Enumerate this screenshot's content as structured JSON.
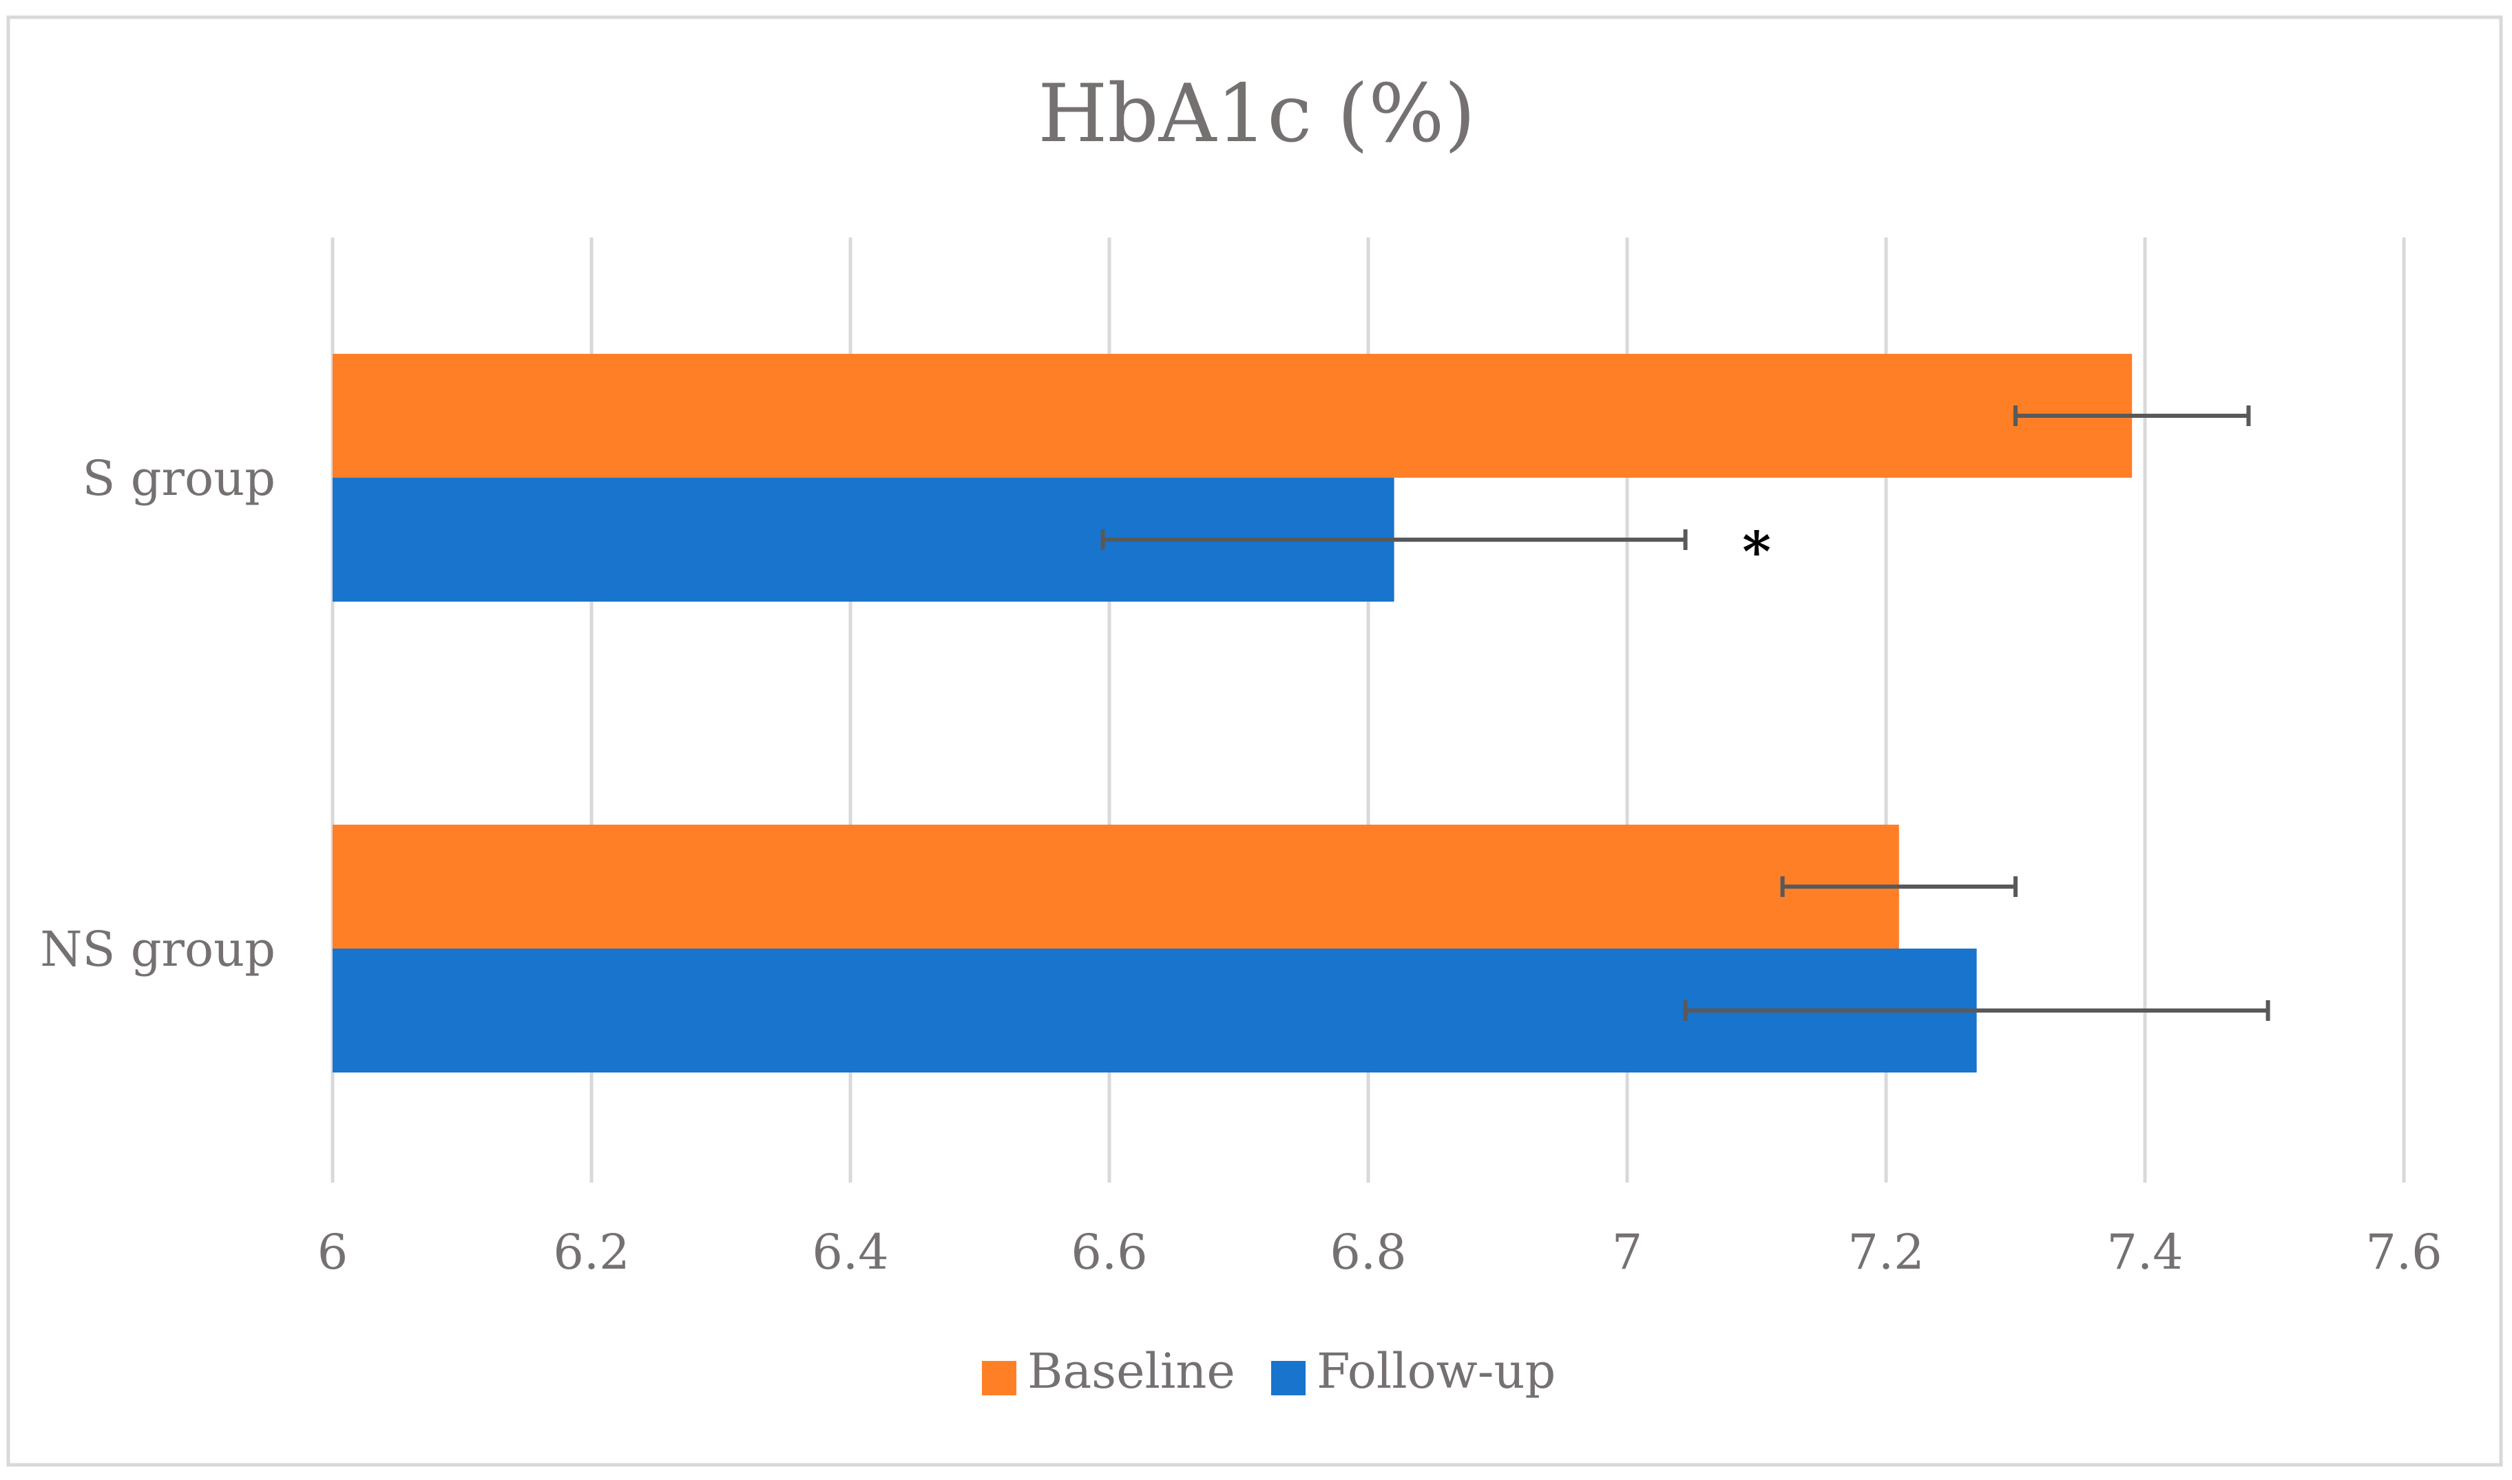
{
  "chart_data": {
    "type": "bar",
    "orientation": "horizontal",
    "title": "HbA1c (%)",
    "categories": [
      "S group",
      "NS group"
    ],
    "series": [
      {
        "name": "Baseline",
        "color": "#FF7F27",
        "values": [
          7.39,
          7.21
        ],
        "error_low": [
          7.3,
          7.12
        ],
        "error_high": [
          7.48,
          7.3
        ]
      },
      {
        "name": "Follow-up",
        "color": "#1874CD",
        "values": [
          6.82,
          7.27
        ],
        "error_low": [
          6.595,
          7.045
        ],
        "error_high": [
          7.045,
          7.495
        ]
      }
    ],
    "x_ticks": [
      "6",
      "6.2",
      "6.4",
      "6.6",
      "6.8",
      "7",
      "7.2",
      "7.4",
      "7.6"
    ],
    "xlim": [
      6,
      7.6
    ],
    "annotation": {
      "text": "*",
      "category": "S group",
      "series": "Follow-up",
      "x_value": 7.1
    },
    "legend_position": "bottom",
    "grid": true
  },
  "colors": {
    "grid": "#D9D9D9",
    "text": "#767171",
    "error_bar": "#595959",
    "frame": "#D9D9D9"
  }
}
